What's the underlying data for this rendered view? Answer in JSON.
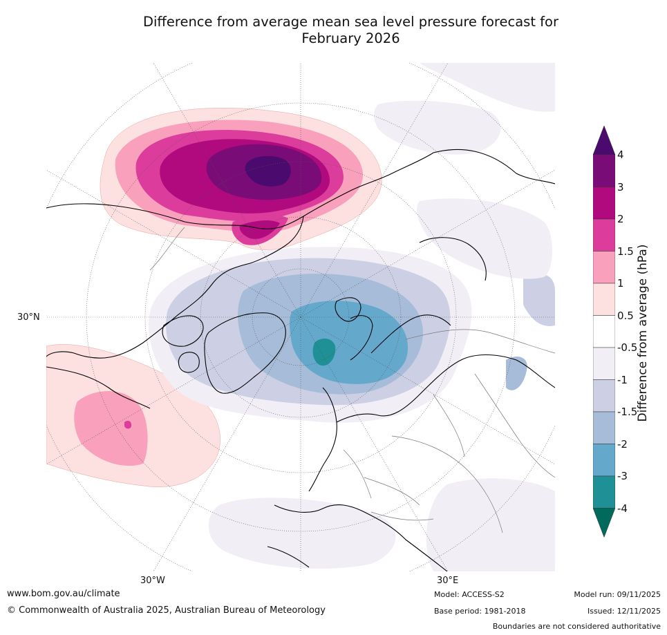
{
  "title_line1": "Difference from average mean sea level pressure forecast for",
  "title_line2": "February 2026",
  "map": {
    "projection": "north polar stereographic",
    "lat_labels": [
      "30°N"
    ],
    "lon_labels": [
      "30°W",
      "30°E"
    ],
    "region_names": [
      "pressure-anomaly-shading",
      "coastlines",
      "country-borders",
      "graticule"
    ]
  },
  "colorbar": {
    "title": "Difference from average (hPa)",
    "ticks": [
      "4",
      "3",
      "2",
      "1.5",
      "1",
      "0.5",
      "-0.5",
      "-1",
      "-1.5",
      "-2",
      "-3",
      "-4"
    ],
    "bins": [
      {
        "range": "> 4",
        "color": "#4a0a6e"
      },
      {
        "range": "3 to 4",
        "color": "#7a0c78"
      },
      {
        "range": "2 to 3",
        "color": "#b00a7e"
      },
      {
        "range": "1.5 to 2",
        "color": "#dc3c9c"
      },
      {
        "range": "1 to 1.5",
        "color": "#f8a0bc"
      },
      {
        "range": "0.5 to 1",
        "color": "#fde0e0"
      },
      {
        "range": "-0.5 to 0.5",
        "color": "#ffffff"
      },
      {
        "range": "-1 to -0.5",
        "color": "#f2eef6"
      },
      {
        "range": "-1.5 to -1",
        "color": "#cdd0e4"
      },
      {
        "range": "-2 to -1.5",
        "color": "#a6bcd8"
      },
      {
        "range": "-3 to -2",
        "color": "#64a8cc"
      },
      {
        "range": "-4 to -3",
        "color": "#1e9096"
      },
      {
        "range": "< -4",
        "color": "#026a5c"
      }
    ]
  },
  "footer": {
    "url": "www.bom.gov.au/climate",
    "copyright": "© Commonwealth of Australia 2025, Australian Bureau of Meteorology",
    "model": "Model: ACCESS-S2",
    "base_period": "Base period: 1981-2018",
    "model_run": "Model run: 09/11/2025",
    "issued": "Issued: 12/11/2025",
    "disclaimer": "Boundaries are not considered authoritative"
  }
}
